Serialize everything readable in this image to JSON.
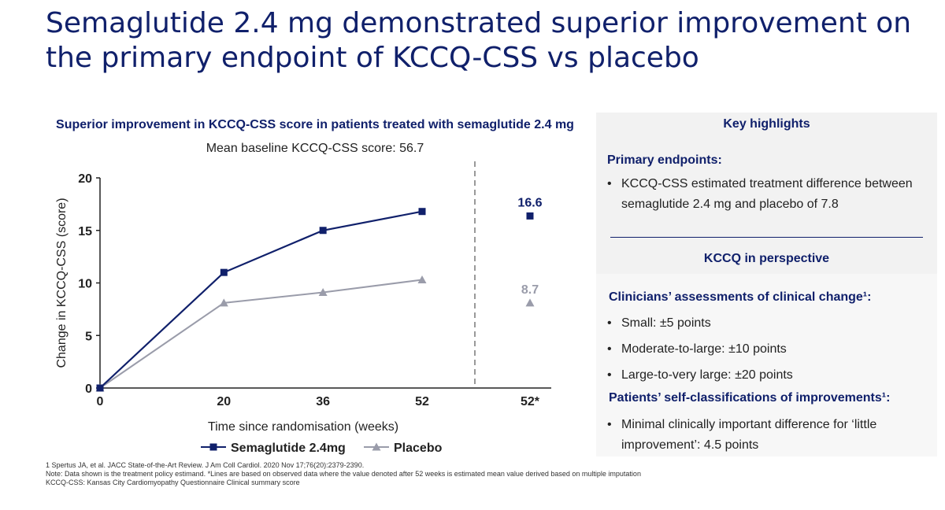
{
  "title": "Semaglutide 2.4 mg demonstrated superior improvement on the primary endpoint of KCCQ-CSS vs placebo",
  "chart_heading": "Superior improvement in KCCQ-CSS score in patients treated with semaglutide 2.4 mg",
  "chart_subheading": "Mean baseline KCCQ-CSS score: 56.7",
  "chart_data": {
    "type": "line",
    "x": [
      0,
      20,
      36,
      52
    ],
    "x_ticks": [
      "0",
      "20",
      "36",
      "52",
      "52*"
    ],
    "xlabel": "Time since randomisation (weeks)",
    "ylabel": "Change in KCCQ-CSS (score)",
    "y_ticks": [
      "0",
      "5",
      "10",
      "15",
      "20"
    ],
    "ylim": [
      0,
      20
    ],
    "grid": false,
    "legend_position": "bottom",
    "series": [
      {
        "name": "Semaglutide 2.4mg",
        "color": "#10206b",
        "marker": "square",
        "values": [
          0,
          11.0,
          15.0,
          16.8
        ],
        "estimated_value": 16.6,
        "estimated_label": "16.6"
      },
      {
        "name": "Placebo",
        "color": "#9a9caa",
        "marker": "triangle",
        "values": [
          0,
          8.1,
          9.1,
          10.3
        ],
        "estimated_value": 8.7,
        "estimated_label": "8.7"
      }
    ]
  },
  "panel": {
    "key_highlights": "Key highlights",
    "primary_endpoints": "Primary endpoints:",
    "primary_bullet": "KCCQ-CSS estimated treatment difference between semaglutide 2.4 mg and placebo of 7.8",
    "perspective": "KCCQ in perspective",
    "clinicians_heading": "Clinicians’ assessments of clinical change¹:",
    "clinicians_items": [
      "Small: ±5 points",
      "Moderate-to-large: ±10 points",
      "Large-to-very large: ±20 points"
    ],
    "patients_heading": "Patients’ self-classifications of improvements¹:",
    "patients_items": [
      "Minimal clinically important difference for ‘little improvement’: 4.5 points"
    ],
    "bullet": "•"
  },
  "footnotes": [
    "1 Spertus JA, et al. JACC State-of-the-Art Review. J Am Coll Cardiol. 2020 Nov 17;76(20):2379-2390.",
    "Note: Data shown is the treatment policy estimand. *Lines are based on observed data where the value denoted after 52 weeks is estimated mean value derived based on multiple imputation",
    "KCCQ-CSS: Kansas City Cardiomyopathy Questionnaire Clinical summary score"
  ]
}
